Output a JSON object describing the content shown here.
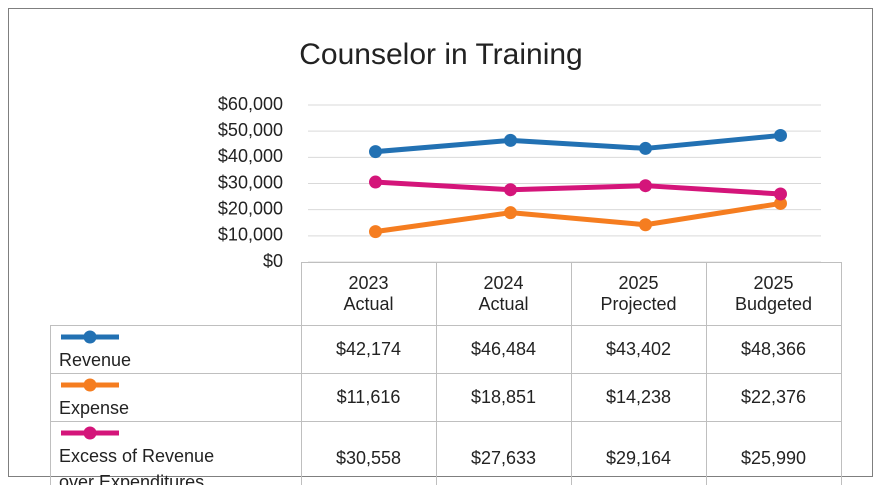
{
  "chart_data": {
    "type": "line",
    "title": "Counselor in Training",
    "categories": [
      "2023 Actual",
      "2024 Actual",
      "2025 Projected",
      "2025 Budgeted"
    ],
    "series": [
      {
        "name": "Revenue",
        "color": "#2271b3",
        "values": [
          42174,
          46484,
          43402,
          48366
        ],
        "value_labels": [
          "$42,174",
          "$46,484",
          "$43,402",
          "$48,366"
        ]
      },
      {
        "name": "Expense",
        "color": "#f57d20",
        "values": [
          11616,
          18851,
          14238,
          22376
        ],
        "value_labels": [
          "$11,616",
          "$18,851",
          "$14,238",
          "$22,376"
        ]
      },
      {
        "name": "Excess of Revenue over Expenditures",
        "color": "#d4157a",
        "values": [
          30558,
          27633,
          29164,
          25990
        ],
        "value_labels": [
          "$30,558",
          "$27,633",
          "$29,164",
          "$25,990"
        ]
      }
    ],
    "ylim": [
      0,
      60000
    ],
    "yticks": [
      {
        "value": 0,
        "label": "$0"
      },
      {
        "value": 10000,
        "label": "$10,000"
      },
      {
        "value": 20000,
        "label": "$20,000"
      },
      {
        "value": 30000,
        "label": "$30,000"
      },
      {
        "value": 40000,
        "label": "$40,000"
      },
      {
        "value": 50000,
        "label": "$50,000"
      },
      {
        "value": 60000,
        "label": "$60,000"
      }
    ],
    "grid": true
  }
}
